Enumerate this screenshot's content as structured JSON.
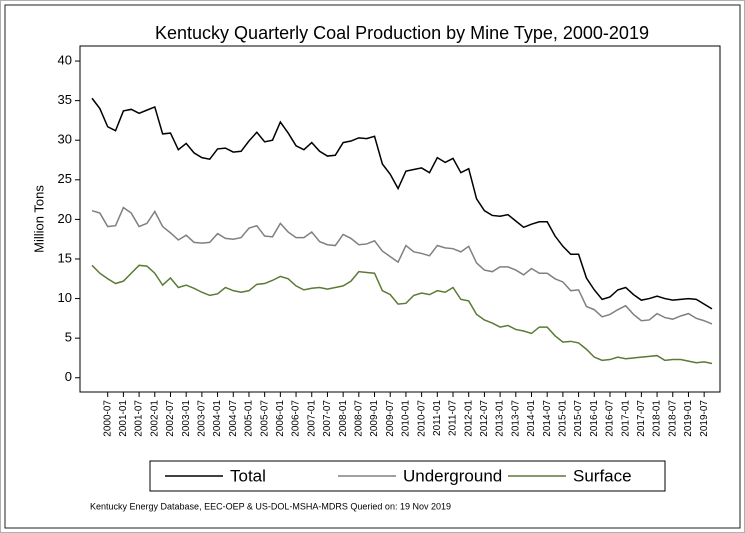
{
  "chart_data": {
    "type": "line",
    "title": "Kentucky Quarterly Coal Production by Mine Type, 2000-2019",
    "y_label": "Million Tons",
    "note": "Kentucky Energy Database, EEC-OEP & US-DOL-MSHA-MDRS Queried on: 19 Nov 2019",
    "categories": [
      null,
      null,
      "2000-07",
      null,
      "2001-01",
      null,
      "2001-07",
      null,
      "2002-01",
      null,
      "2002-07",
      null,
      "2003-01",
      null,
      "2003-07",
      null,
      "2004-01",
      null,
      "2004-07",
      null,
      "2005-01",
      null,
      "2005-07",
      null,
      "2006-01",
      null,
      "2006-07",
      null,
      "2007-01",
      null,
      "2007-07",
      null,
      "2008-01",
      null,
      "2008-07",
      null,
      "2009-01",
      null,
      "2009-07",
      null,
      "2010-01",
      null,
      "2010-07",
      null,
      "2011-01",
      null,
      "2011-07",
      null,
      "2012-01",
      null,
      "2012-07",
      null,
      "2013-01",
      null,
      "2013-07",
      null,
      "2014-01",
      null,
      "2014-07",
      null,
      "2015-01",
      null,
      "2015-07",
      null,
      "2016-01",
      null,
      "2016-07",
      null,
      "2017-01",
      null,
      "2017-07",
      null,
      "2018-01",
      null,
      "2018-07",
      null,
      "2019-01",
      null,
      "2019-07",
      null
    ],
    "series": [
      {
        "name": "Total",
        "color": "#000000",
        "values": [
          35.3,
          34,
          31.7,
          31.2,
          33.7,
          33.9,
          33.4,
          33.8,
          34.2,
          30.8,
          30.9,
          28.8,
          29.6,
          28.4,
          27.8,
          27.6,
          28.9,
          29,
          28.5,
          28.6,
          29.9,
          31,
          29.8,
          30,
          32.3,
          30.9,
          29.3,
          28.8,
          29.7,
          28.6,
          28,
          28.1,
          29.7,
          29.9,
          30.3,
          30.2,
          30.5,
          27,
          25.7,
          23.9,
          26.1,
          26.3,
          26.5,
          25.9,
          27.8,
          27.2,
          27.7,
          25.9,
          26.4,
          22.6,
          21.1,
          20.5,
          20.4,
          20.6,
          19.8,
          19,
          19.4,
          19.7,
          19.7,
          17.9,
          16.6,
          15.6,
          15.6,
          12.6,
          11.1,
          9.9,
          10.2,
          11.1,
          11.4,
          10.5,
          9.8,
          10,
          10.3,
          10,
          9.8,
          9.9,
          10,
          9.9,
          9.3,
          8.7
        ]
      },
      {
        "name": "Underground",
        "color": "#808080",
        "values": [
          21.1,
          20.8,
          19.1,
          19.2,
          21.5,
          20.8,
          19.1,
          19.5,
          21,
          19.1,
          18.3,
          17.4,
          18,
          17.1,
          17,
          17.1,
          18.2,
          17.6,
          17.5,
          17.7,
          18.9,
          19.2,
          17.9,
          17.8,
          19.5,
          18.4,
          17.7,
          17.7,
          18.4,
          17.2,
          16.8,
          16.7,
          18.1,
          17.6,
          16.8,
          16.9,
          17.3,
          16,
          15.3,
          14.6,
          16.7,
          15.9,
          15.7,
          15.4,
          16.7,
          16.4,
          16.3,
          15.9,
          16.6,
          14.5,
          13.6,
          13.4,
          14,
          14,
          13.6,
          13,
          13.8,
          13.2,
          13.2,
          12.5,
          12.1,
          11,
          11.1,
          9,
          8.6,
          7.7,
          8,
          8.6,
          9.1,
          8,
          7.2,
          7.3,
          8.1,
          7.6,
          7.4,
          7.8,
          8.1,
          7.5,
          7.2,
          6.8
        ]
      },
      {
        "name": "Surface",
        "color": "#5b7a35",
        "values": [
          14.2,
          13.2,
          12.5,
          11.9,
          12.2,
          13.2,
          14.2,
          14.1,
          13.2,
          11.7,
          12.6,
          11.4,
          11.7,
          11.3,
          10.8,
          10.4,
          10.6,
          11.4,
          11,
          10.8,
          11,
          11.8,
          11.9,
          12.3,
          12.8,
          12.5,
          11.6,
          11.1,
          11.3,
          11.4,
          11.2,
          11.4,
          11.6,
          12.2,
          13.4,
          13.3,
          13.2,
          11,
          10.5,
          9.3,
          9.4,
          10.4,
          10.7,
          10.5,
          11,
          10.8,
          11.4,
          9.9,
          9.7,
          8,
          7.3,
          6.9,
          6.4,
          6.6,
          6.1,
          5.9,
          5.6,
          6.4,
          6.4,
          5.3,
          4.5,
          4.6,
          4.4,
          3.6,
          2.6,
          2.2,
          2.3,
          2.6,
          2.4,
          2.5,
          2.6,
          2.7,
          2.8,
          2.2,
          2.3,
          2.3,
          2.1,
          1.9,
          2,
          1.8
        ]
      }
    ],
    "ylim": [
      -1.8,
      41.9
    ],
    "yticks": [
      0,
      5,
      10,
      15,
      20,
      25,
      30,
      35,
      40
    ],
    "grid": false,
    "legend": "bottom"
  }
}
